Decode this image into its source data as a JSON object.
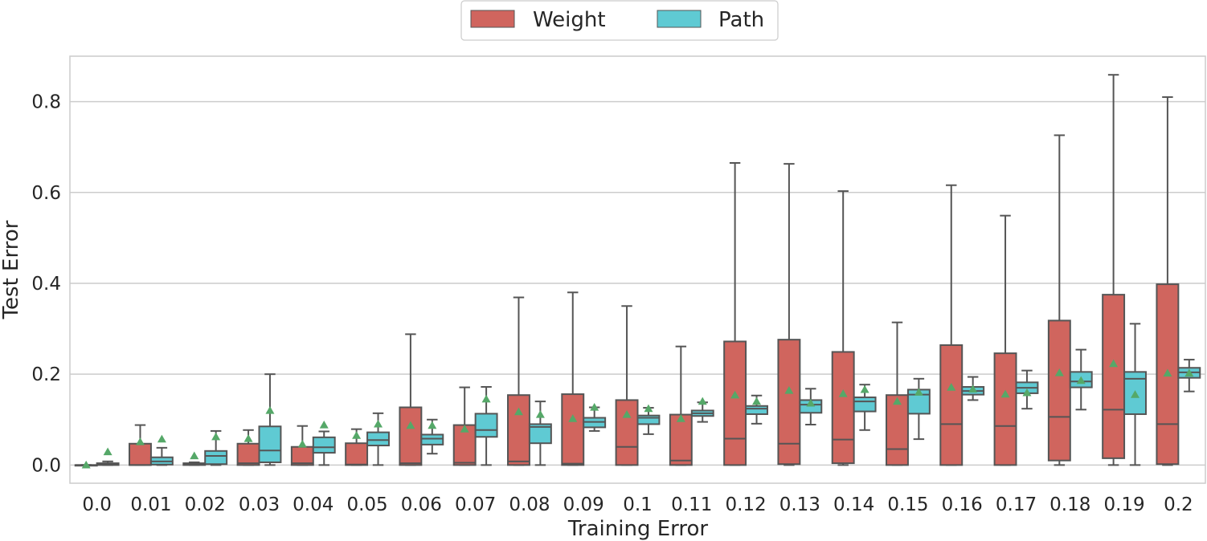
{
  "chart_data": {
    "type": "box",
    "title": "",
    "xlabel": "Training Error",
    "ylabel": "Test Error",
    "ylim": [
      -0.04,
      0.9
    ],
    "yticks": [
      "0.0",
      "0.2",
      "0.4",
      "0.6",
      "0.8"
    ],
    "ytick_values": [
      0.0,
      0.2,
      0.4,
      0.6,
      0.8
    ],
    "grid": true,
    "legend_position": "top-center-outside",
    "categories": [
      "0.0",
      "0.01",
      "0.02",
      "0.03",
      "0.04",
      "0.05",
      "0.06",
      "0.07",
      "0.08",
      "0.09",
      "0.1",
      "0.11",
      "0.12",
      "0.13",
      "0.14",
      "0.15",
      "0.16",
      "0.17",
      "0.18",
      "0.19",
      "0.2"
    ],
    "colors": {
      "Weight": "#d0655e",
      "Path": "#5fcad3",
      "mean_marker": "#55a868",
      "line": "#555555"
    },
    "series": [
      {
        "name": "Weight",
        "boxes": [
          {
            "whislo": 0.0,
            "q1": 0.0,
            "med": 0.0,
            "q3": 0.0,
            "whishi": 0.0,
            "mean": 0.0
          },
          {
            "whislo": 0.0,
            "q1": 0.0,
            "med": 0.0,
            "q3": 0.047,
            "whishi": 0.088,
            "mean": 0.051
          },
          {
            "whislo": 0.0,
            "q1": 0.0,
            "med": 0.002,
            "q3": 0.004,
            "whishi": 0.006,
            "mean": 0.02
          },
          {
            "whislo": 0.0,
            "q1": 0.0,
            "med": 0.004,
            "q3": 0.047,
            "whishi": 0.077,
            "mean": 0.058
          },
          {
            "whislo": 0.0,
            "q1": 0.0,
            "med": 0.004,
            "q3": 0.04,
            "whishi": 0.086,
            "mean": 0.046
          },
          {
            "whislo": 0.0,
            "q1": 0.0,
            "med": 0.001,
            "q3": 0.048,
            "whishi": 0.079,
            "mean": 0.065
          },
          {
            "whislo": 0.0,
            "q1": 0.0,
            "med": 0.004,
            "q3": 0.127,
            "whishi": 0.288,
            "mean": 0.087
          },
          {
            "whislo": 0.0,
            "q1": 0.0,
            "med": 0.005,
            "q3": 0.088,
            "whishi": 0.171,
            "mean": 0.079
          },
          {
            "whislo": 0.0,
            "q1": 0.0,
            "med": 0.008,
            "q3": 0.154,
            "whishi": 0.369,
            "mean": 0.117
          },
          {
            "whislo": 0.0,
            "q1": 0.0,
            "med": 0.003,
            "q3": 0.156,
            "whishi": 0.38,
            "mean": 0.102
          },
          {
            "whislo": 0.0,
            "q1": 0.0,
            "med": 0.04,
            "q3": 0.143,
            "whishi": 0.35,
            "mean": 0.111
          },
          {
            "whislo": 0.0,
            "q1": 0.0,
            "med": 0.01,
            "q3": 0.111,
            "whishi": 0.261,
            "mean": 0.102
          },
          {
            "whislo": 0.0,
            "q1": 0.0,
            "med": 0.058,
            "q3": 0.272,
            "whishi": 0.665,
            "mean": 0.154
          },
          {
            "whislo": 0.0,
            "q1": 0.002,
            "med": 0.047,
            "q3": 0.276,
            "whishi": 0.663,
            "mean": 0.164
          },
          {
            "whislo": 0.0,
            "q1": 0.004,
            "med": 0.056,
            "q3": 0.249,
            "whishi": 0.603,
            "mean": 0.157
          },
          {
            "whislo": 0.0,
            "q1": 0.0,
            "med": 0.035,
            "q3": 0.154,
            "whishi": 0.314,
            "mean": 0.14
          },
          {
            "whislo": 0.0,
            "q1": 0.0,
            "med": 0.09,
            "q3": 0.264,
            "whishi": 0.616,
            "mean": 0.171
          },
          {
            "whislo": 0.0,
            "q1": 0.0,
            "med": 0.086,
            "q3": 0.246,
            "whishi": 0.549,
            "mean": 0.156
          },
          {
            "whislo": 0.0,
            "q1": 0.01,
            "med": 0.106,
            "q3": 0.318,
            "whishi": 0.726,
            "mean": 0.203
          },
          {
            "whislo": 0.0,
            "q1": 0.015,
            "med": 0.122,
            "q3": 0.375,
            "whishi": 0.859,
            "mean": 0.223
          },
          {
            "whislo": 0.0,
            "q1": 0.002,
            "med": 0.09,
            "q3": 0.398,
            "whishi": 0.81,
            "mean": 0.202
          }
        ]
      },
      {
        "name": "Path",
        "boxes": [
          {
            "whislo": 0.0,
            "q1": 0.0,
            "med": 0.002,
            "q3": 0.004,
            "whishi": 0.008,
            "mean": 0.029
          },
          {
            "whislo": 0.0,
            "q1": 0.001,
            "med": 0.008,
            "q3": 0.017,
            "whishi": 0.038,
            "mean": 0.057
          },
          {
            "whislo": 0.0,
            "q1": 0.002,
            "med": 0.02,
            "q3": 0.031,
            "whishi": 0.075,
            "mean": 0.062
          },
          {
            "whislo": 0.0,
            "q1": 0.006,
            "med": 0.032,
            "q3": 0.085,
            "whishi": 0.2,
            "mean": 0.12
          },
          {
            "whislo": 0.0,
            "q1": 0.027,
            "med": 0.039,
            "q3": 0.061,
            "whishi": 0.074,
            "mean": 0.088
          },
          {
            "whislo": 0.0,
            "q1": 0.043,
            "med": 0.055,
            "q3": 0.072,
            "whishi": 0.114,
            "mean": 0.09
          },
          {
            "whislo": 0.025,
            "q1": 0.045,
            "med": 0.058,
            "q3": 0.067,
            "whishi": 0.1,
            "mean": 0.087
          },
          {
            "whislo": 0.0,
            "q1": 0.062,
            "med": 0.077,
            "q3": 0.113,
            "whishi": 0.172,
            "mean": 0.145
          },
          {
            "whislo": 0.0,
            "q1": 0.048,
            "med": 0.084,
            "q3": 0.09,
            "whishi": 0.14,
            "mean": 0.111
          },
          {
            "whislo": 0.075,
            "q1": 0.083,
            "med": 0.095,
            "q3": 0.104,
            "whishi": 0.127,
            "mean": 0.127
          },
          {
            "whislo": 0.068,
            "q1": 0.09,
            "med": 0.104,
            "q3": 0.109,
            "whishi": 0.126,
            "mean": 0.124
          },
          {
            "whislo": 0.095,
            "q1": 0.108,
            "med": 0.114,
            "q3": 0.12,
            "whishi": 0.138,
            "mean": 0.14
          },
          {
            "whislo": 0.091,
            "q1": 0.112,
            "med": 0.124,
            "q3": 0.13,
            "whishi": 0.153,
            "mean": 0.14
          },
          {
            "whislo": 0.089,
            "q1": 0.115,
            "med": 0.133,
            "q3": 0.143,
            "whishi": 0.168,
            "mean": 0.136
          },
          {
            "whislo": 0.077,
            "q1": 0.118,
            "med": 0.14,
            "q3": 0.149,
            "whishi": 0.177,
            "mean": 0.166
          },
          {
            "whislo": 0.057,
            "q1": 0.113,
            "med": 0.155,
            "q3": 0.166,
            "whishi": 0.19,
            "mean": 0.16
          },
          {
            "whislo": 0.143,
            "q1": 0.155,
            "med": 0.163,
            "q3": 0.172,
            "whishi": 0.194,
            "mean": 0.167
          },
          {
            "whislo": 0.124,
            "q1": 0.158,
            "med": 0.17,
            "q3": 0.182,
            "whishi": 0.208,
            "mean": 0.159
          },
          {
            "whislo": 0.122,
            "q1": 0.171,
            "med": 0.184,
            "q3": 0.205,
            "whishi": 0.254,
            "mean": 0.186
          },
          {
            "whislo": 0.0,
            "q1": 0.112,
            "med": 0.19,
            "q3": 0.205,
            "whishi": 0.311,
            "mean": 0.155
          },
          {
            "whislo": 0.162,
            "q1": 0.192,
            "med": 0.204,
            "q3": 0.214,
            "whishi": 0.232,
            "mean": 0.202
          }
        ]
      }
    ]
  }
}
